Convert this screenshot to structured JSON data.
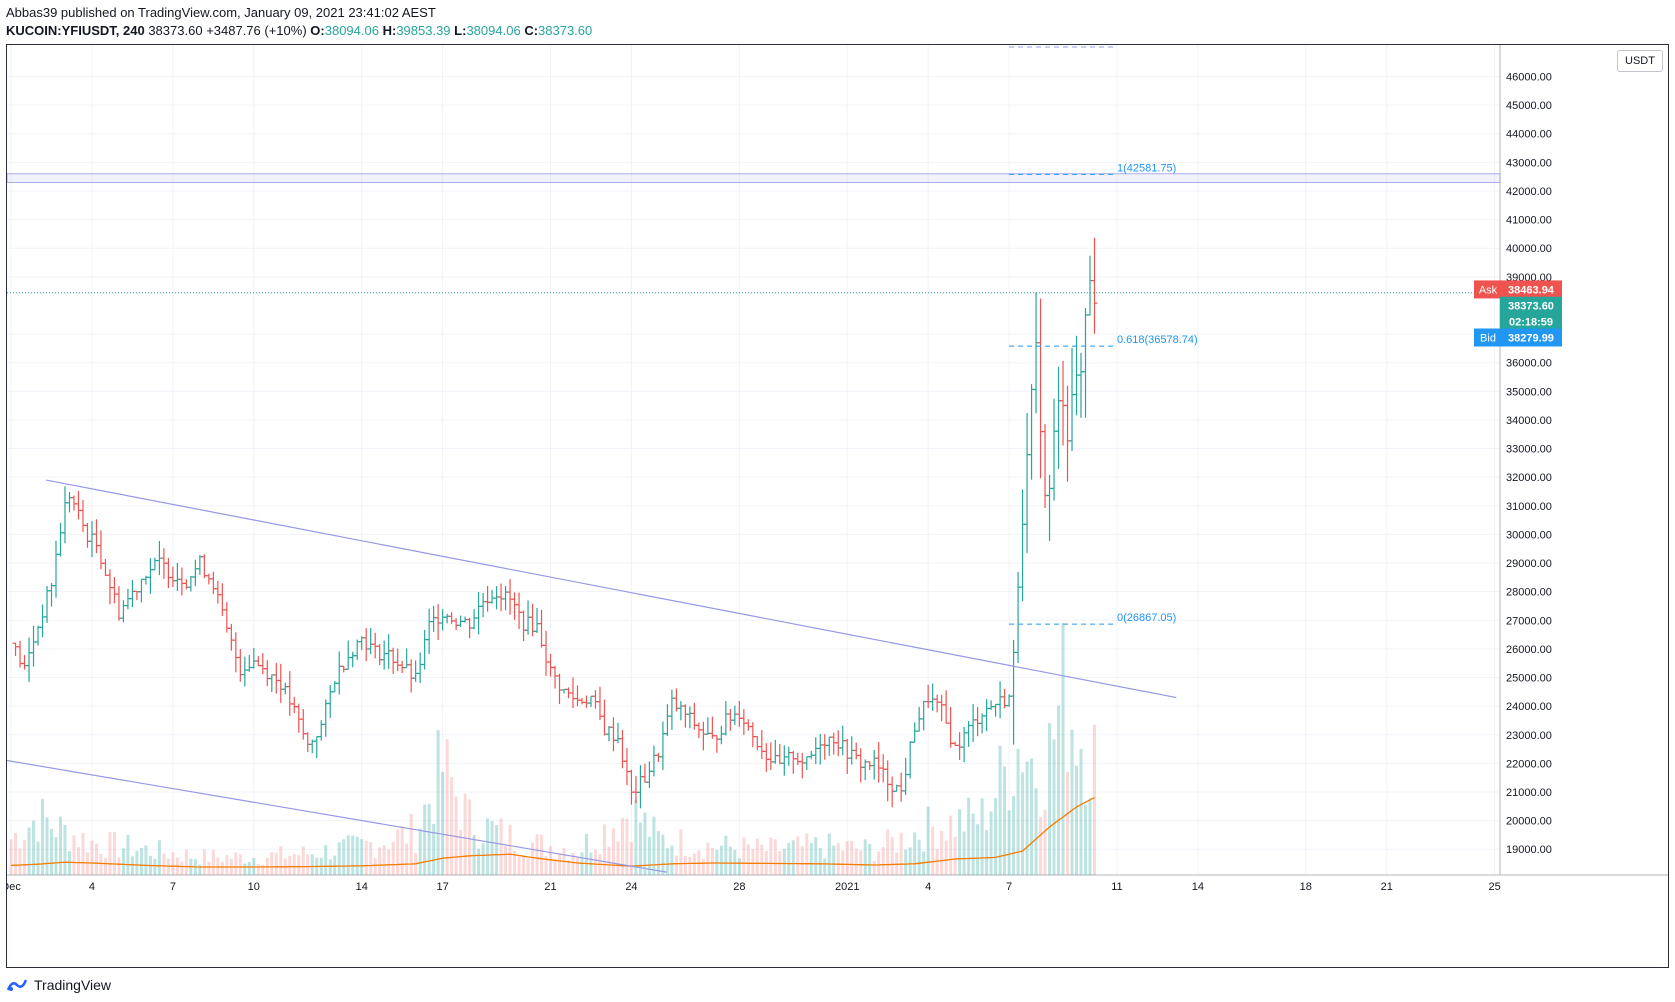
{
  "header": {
    "published": "Abbas39 published on TradingView.com, January 09, 2021 23:41:02 AEST",
    "author": "Abbas39",
    "symbol": "KUCOIN:YFIUSDT, 240",
    "last": "38373.60",
    "change": "+3487.76 (+10%)",
    "o_label": "O:",
    "o_value": "38094.06",
    "h_label": "H:",
    "h_value": "39853.39",
    "l_label": "L:",
    "l_value": "38094.06",
    "c_label": "C:",
    "c_value": "38373.60"
  },
  "footer": {
    "brand": "TradingView"
  },
  "price_axis": {
    "unit": "USDT",
    "ask_label": "Ask",
    "ask_value": "38463.94",
    "last_value": "38373.60",
    "countdown": "02:18:59",
    "bid_label": "Bid",
    "bid_value": "38279.99"
  },
  "colors": {
    "up": "#26a69a",
    "down": "#ef5350",
    "trendline": "#9598e6",
    "fib": "#2196f3",
    "ma": "#f57c00",
    "ask": "#ef5350",
    "bid": "#2196f3"
  },
  "chart_data": {
    "type": "ohlc",
    "y_ticks": [
      "46000.00",
      "45000.00",
      "44000.00",
      "43000.00",
      "42000.00",
      "41000.00",
      "40000.00",
      "39000.00",
      "37000.00",
      "36000.00",
      "35000.00",
      "34000.00",
      "33000.00",
      "32000.00",
      "31000.00",
      "30000.00",
      "29000.00",
      "28000.00",
      "27000.00",
      "26000.00",
      "25000.00",
      "24000.00",
      "23000.00",
      "22000.00",
      "21000.00",
      "20000.00",
      "19000.00"
    ],
    "ylim": [
      18100,
      47100
    ],
    "x_ticks": [
      {
        "label": "Dec",
        "day": 1
      },
      {
        "label": "4",
        "day": 4
      },
      {
        "label": "7",
        "day": 7
      },
      {
        "label": "10",
        "day": 10
      },
      {
        "label": "14",
        "day": 14
      },
      {
        "label": "17",
        "day": 17
      },
      {
        "label": "21",
        "day": 21
      },
      {
        "label": "24",
        "day": 24
      },
      {
        "label": "28",
        "day": 28
      },
      {
        "label": "2021",
        "day": 32
      },
      {
        "label": "4",
        "day": 35
      },
      {
        "label": "7",
        "day": 38
      },
      {
        "label": "11",
        "day": 42
      },
      {
        "label": "14",
        "day": 45
      },
      {
        "label": "18",
        "day": 49
      },
      {
        "label": "21",
        "day": 52
      },
      {
        "label": "25",
        "day": 56
      }
    ],
    "xlim_days": [
      0.85,
      56.2
    ],
    "fib_levels": [
      {
        "label": "1(42581.75)",
        "value": 42581.75
      },
      {
        "label": "0.618(36578.74)",
        "value": 36578.74
      },
      {
        "label": "0(26867.05)",
        "value": 26867.05
      }
    ],
    "resistance_zone": [
      42300,
      42600
    ],
    "last_price": 38373.6,
    "close_path": [
      [
        1.0,
        26200
      ],
      [
        1.5,
        25300
      ],
      [
        2.0,
        26800
      ],
      [
        2.5,
        28300
      ],
      [
        2.8,
        30000
      ],
      [
        3.1,
        31500
      ],
      [
        3.4,
        30900
      ],
      [
        3.8,
        30000
      ],
      [
        4.2,
        29600
      ],
      [
        4.6,
        28400
      ],
      [
        5.0,
        27300
      ],
      [
        5.3,
        27700
      ],
      [
        5.6,
        28100
      ],
      [
        6.0,
        28700
      ],
      [
        6.5,
        29000
      ],
      [
        7.0,
        28600
      ],
      [
        7.5,
        28400
      ],
      [
        8.0,
        29000
      ],
      [
        8.5,
        28300
      ],
      [
        9.0,
        26600
      ],
      [
        9.5,
        25300
      ],
      [
        10.0,
        25600
      ],
      [
        10.5,
        25200
      ],
      [
        11.0,
        24800
      ],
      [
        11.5,
        23800
      ],
      [
        12.0,
        22600
      ],
      [
        12.5,
        23300
      ],
      [
        13.0,
        25000
      ],
      [
        13.5,
        25800
      ],
      [
        14.0,
        26400
      ],
      [
        14.5,
        25900
      ],
      [
        15.0,
        25800
      ],
      [
        15.5,
        25400
      ],
      [
        16.0,
        24900
      ],
      [
        16.5,
        26800
      ],
      [
        17.0,
        27300
      ],
      [
        17.5,
        27000
      ],
      [
        18.0,
        26900
      ],
      [
        18.5,
        27700
      ],
      [
        19.0,
        28000
      ],
      [
        19.5,
        27700
      ],
      [
        20.0,
        26900
      ],
      [
        20.5,
        26800
      ],
      [
        21.0,
        25200
      ],
      [
        21.5,
        24500
      ],
      [
        22.0,
        24200
      ],
      [
        22.5,
        24300
      ],
      [
        23.0,
        23200
      ],
      [
        23.5,
        22900
      ],
      [
        24.0,
        20900
      ],
      [
        24.5,
        21500
      ],
      [
        25.0,
        22400
      ],
      [
        25.5,
        24100
      ],
      [
        26.0,
        23700
      ],
      [
        26.5,
        23200
      ],
      [
        27.0,
        22800
      ],
      [
        27.5,
        23500
      ],
      [
        28.0,
        23800
      ],
      [
        28.5,
        23000
      ],
      [
        29.0,
        22300
      ],
      [
        29.5,
        21900
      ],
      [
        30.0,
        22300
      ],
      [
        30.5,
        22000
      ],
      [
        31.0,
        22800
      ],
      [
        31.5,
        22900
      ],
      [
        32.0,
        22400
      ],
      [
        32.5,
        22000
      ],
      [
        33.0,
        22000
      ],
      [
        33.5,
        21400
      ],
      [
        34.0,
        21000
      ],
      [
        34.5,
        23300
      ],
      [
        35.0,
        24300
      ],
      [
        35.5,
        23800
      ],
      [
        36.0,
        22500
      ],
      [
        36.5,
        23200
      ],
      [
        37.0,
        23800
      ],
      [
        37.5,
        24100
      ],
      [
        38.0,
        24300
      ],
      [
        38.2,
        26000
      ],
      [
        38.4,
        29500
      ],
      [
        38.6,
        31700
      ],
      [
        38.8,
        34500
      ],
      [
        39.0,
        36500
      ],
      [
        39.2,
        33300
      ],
      [
        39.4,
        30200
      ],
      [
        39.6,
        33000
      ],
      [
        39.8,
        34500
      ],
      [
        40.0,
        34700
      ],
      [
        40.2,
        33200
      ],
      [
        40.4,
        35900
      ],
      [
        40.6,
        34800
      ],
      [
        40.8,
        37400
      ],
      [
        41.0,
        39000
      ],
      [
        41.2,
        38094
      ]
    ],
    "volume_path": [
      [
        1.0,
        1000
      ],
      [
        2.0,
        1600
      ],
      [
        3.0,
        1200
      ],
      [
        4.0,
        900
      ],
      [
        6.0,
        700
      ],
      [
        8.0,
        500
      ],
      [
        10.0,
        500
      ],
      [
        12.0,
        600
      ],
      [
        14.0,
        800
      ],
      [
        16.0,
        1200
      ],
      [
        17.0,
        3000
      ],
      [
        18.0,
        1500
      ],
      [
        20.0,
        900
      ],
      [
        22.0,
        700
      ],
      [
        24.0,
        1800
      ],
      [
        25.0,
        1000
      ],
      [
        27.0,
        800
      ],
      [
        29.0,
        700
      ],
      [
        31.0,
        800
      ],
      [
        33.0,
        700
      ],
      [
        35.0,
        1300
      ],
      [
        37.0,
        1600
      ],
      [
        38.5,
        3800
      ],
      [
        39.0,
        2900
      ],
      [
        39.5,
        3400
      ],
      [
        40.0,
        5000
      ],
      [
        40.5,
        4200
      ],
      [
        41.0,
        3400
      ]
    ],
    "ma_path": [
      [
        1.0,
        240
      ],
      [
        2.0,
        270
      ],
      [
        3.0,
        320
      ],
      [
        4.0,
        300
      ],
      [
        6.0,
        240
      ],
      [
        8.0,
        200
      ],
      [
        10.0,
        200
      ],
      [
        12.0,
        210
      ],
      [
        14.0,
        230
      ],
      [
        16.0,
        280
      ],
      [
        17.0,
        420
      ],
      [
        18.0,
        480
      ],
      [
        19.5,
        520
      ],
      [
        20.5,
        420
      ],
      [
        22.0,
        300
      ],
      [
        24.0,
        220
      ],
      [
        25.5,
        280
      ],
      [
        27.0,
        300
      ],
      [
        29.0,
        290
      ],
      [
        31.0,
        280
      ],
      [
        33.0,
        250
      ],
      [
        34.5,
        280
      ],
      [
        36.0,
        400
      ],
      [
        37.5,
        440
      ],
      [
        38.5,
        600
      ],
      [
        39.5,
        1200
      ],
      [
        40.5,
        1700
      ],
      [
        41.2,
        1950
      ]
    ]
  }
}
